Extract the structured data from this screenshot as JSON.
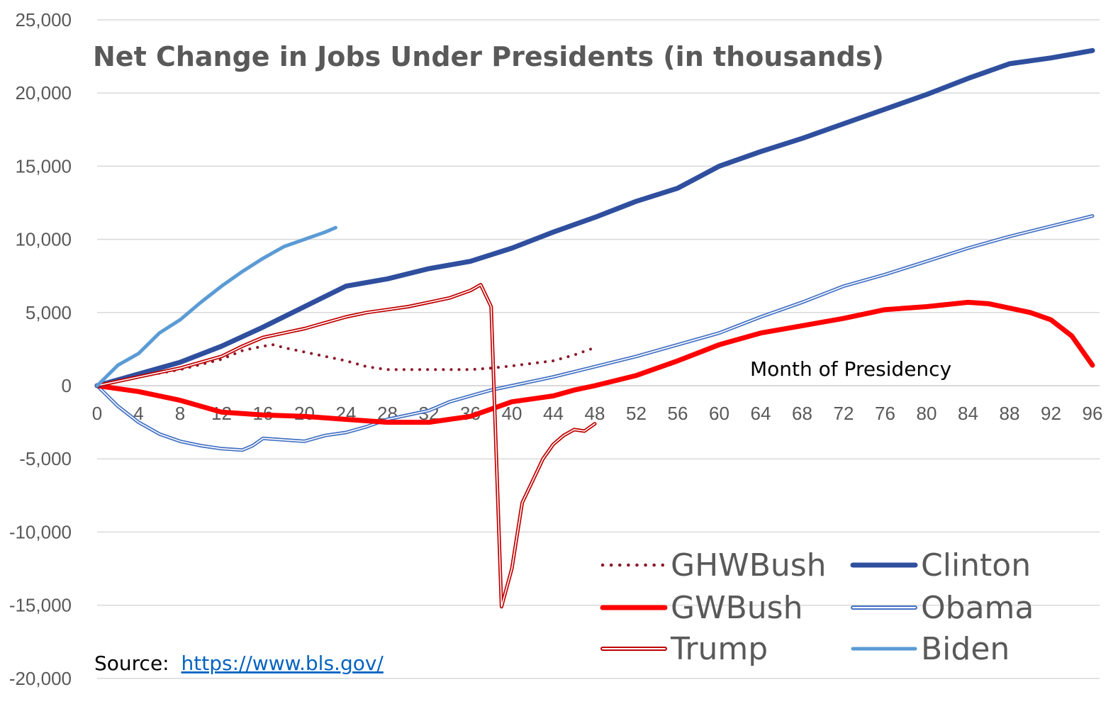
{
  "chart_data": {
    "type": "line",
    "title": "Net Change in Jobs Under Presidents (in thousands)",
    "xlabel": "Month of Presidency",
    "ylabel": "",
    "xlim": [
      0,
      96
    ],
    "ylim": [
      -20000,
      25000
    ],
    "xticks": [
      0,
      4,
      8,
      12,
      16,
      20,
      24,
      28,
      32,
      36,
      40,
      44,
      48,
      52,
      56,
      60,
      64,
      68,
      72,
      76,
      80,
      84,
      88,
      92,
      96
    ],
    "ytick_labels": [
      "25,000",
      "20,000",
      "15,000",
      "10,000",
      "5,000",
      "0",
      "-5,000",
      "-10,000",
      "-15,000",
      "-20,000"
    ],
    "ytick_values": [
      25000,
      20000,
      15000,
      10000,
      5000,
      0,
      -5000,
      -10000,
      -15000,
      -20000
    ],
    "grid": true,
    "series": [
      {
        "name": "GHWBush",
        "color": "#8b1a2b",
        "style": "dotted",
        "points": [
          [
            0,
            0
          ],
          [
            4,
            600
          ],
          [
            8,
            1100
          ],
          [
            12,
            1800
          ],
          [
            14,
            2400
          ],
          [
            16,
            2700
          ],
          [
            17,
            2800
          ],
          [
            18,
            2600
          ],
          [
            20,
            2300
          ],
          [
            22,
            2000
          ],
          [
            24,
            1700
          ],
          [
            26,
            1300
          ],
          [
            28,
            1100
          ],
          [
            32,
            1100
          ],
          [
            36,
            1100
          ],
          [
            38,
            1200
          ],
          [
            40,
            1350
          ],
          [
            44,
            1700
          ],
          [
            46,
            2100
          ],
          [
            48,
            2600
          ]
        ]
      },
      {
        "name": "Clinton",
        "color": "#2f4f9e",
        "style": "thick",
        "points": [
          [
            0,
            0
          ],
          [
            4,
            800
          ],
          [
            8,
            1600
          ],
          [
            12,
            2700
          ],
          [
            16,
            4000
          ],
          [
            20,
            5400
          ],
          [
            24,
            6800
          ],
          [
            28,
            7300
          ],
          [
            32,
            8000
          ],
          [
            36,
            8500
          ],
          [
            40,
            9400
          ],
          [
            44,
            10500
          ],
          [
            48,
            11500
          ],
          [
            52,
            12600
          ],
          [
            56,
            13500
          ],
          [
            60,
            15000
          ],
          [
            64,
            16000
          ],
          [
            68,
            16900
          ],
          [
            72,
            17900
          ],
          [
            76,
            18900
          ],
          [
            80,
            19900
          ],
          [
            84,
            21000
          ],
          [
            88,
            22000
          ],
          [
            92,
            22400
          ],
          [
            96,
            22900
          ]
        ]
      },
      {
        "name": "GWBush",
        "color": "#ff0000",
        "style": "thick",
        "points": [
          [
            0,
            0
          ],
          [
            4,
            -400
          ],
          [
            8,
            -1000
          ],
          [
            12,
            -1800
          ],
          [
            16,
            -2000
          ],
          [
            20,
            -2100
          ],
          [
            24,
            -2300
          ],
          [
            28,
            -2500
          ],
          [
            32,
            -2500
          ],
          [
            36,
            -2100
          ],
          [
            40,
            -1100
          ],
          [
            44,
            -700
          ],
          [
            46,
            -300
          ],
          [
            48,
            0
          ],
          [
            52,
            700
          ],
          [
            56,
            1700
          ],
          [
            60,
            2800
          ],
          [
            64,
            3600
          ],
          [
            68,
            4100
          ],
          [
            72,
            4600
          ],
          [
            76,
            5200
          ],
          [
            80,
            5400
          ],
          [
            84,
            5700
          ],
          [
            86,
            5600
          ],
          [
            88,
            5300
          ],
          [
            90,
            5000
          ],
          [
            92,
            4500
          ],
          [
            94,
            3400
          ],
          [
            96,
            1400
          ]
        ]
      },
      {
        "name": "Obama",
        "color": "#4472c4",
        "style": "double",
        "points": [
          [
            0,
            0
          ],
          [
            2,
            -1400
          ],
          [
            4,
            -2500
          ],
          [
            6,
            -3300
          ],
          [
            8,
            -3800
          ],
          [
            10,
            -4100
          ],
          [
            12,
            -4300
          ],
          [
            14,
            -4400
          ],
          [
            15,
            -4100
          ],
          [
            16,
            -3600
          ],
          [
            18,
            -3700
          ],
          [
            20,
            -3800
          ],
          [
            22,
            -3400
          ],
          [
            24,
            -3200
          ],
          [
            26,
            -2800
          ],
          [
            28,
            -2300
          ],
          [
            32,
            -1700
          ],
          [
            34,
            -1100
          ],
          [
            36,
            -700
          ],
          [
            38,
            -300
          ],
          [
            40,
            0
          ],
          [
            44,
            600
          ],
          [
            48,
            1300
          ],
          [
            52,
            2000
          ],
          [
            56,
            2800
          ],
          [
            60,
            3600
          ],
          [
            64,
            4700
          ],
          [
            68,
            5700
          ],
          [
            72,
            6800
          ],
          [
            76,
            7600
          ],
          [
            80,
            8500
          ],
          [
            84,
            9400
          ],
          [
            88,
            10200
          ],
          [
            92,
            10900
          ],
          [
            96,
            11600
          ]
        ]
      },
      {
        "name": "Trump",
        "color": "#c00000",
        "style": "double",
        "points": [
          [
            0,
            0
          ],
          [
            4,
            600
          ],
          [
            8,
            1200
          ],
          [
            12,
            2000
          ],
          [
            14,
            2700
          ],
          [
            16,
            3300
          ],
          [
            18,
            3600
          ],
          [
            20,
            3900
          ],
          [
            22,
            4300
          ],
          [
            24,
            4700
          ],
          [
            26,
            5000
          ],
          [
            28,
            5200
          ],
          [
            30,
            5400
          ],
          [
            32,
            5700
          ],
          [
            34,
            6000
          ],
          [
            36,
            6500
          ],
          [
            37,
            6900
          ],
          [
            38,
            5400
          ],
          [
            39,
            -15100
          ],
          [
            40,
            -12500
          ],
          [
            41,
            -8000
          ],
          [
            42,
            -6500
          ],
          [
            43,
            -5000
          ],
          [
            44,
            -4000
          ],
          [
            45,
            -3400
          ],
          [
            46,
            -3000
          ],
          [
            47,
            -3100
          ],
          [
            48,
            -2600
          ]
        ]
      },
      {
        "name": "Biden",
        "color": "#5b9bd5",
        "style": "medium",
        "points": [
          [
            0,
            0
          ],
          [
            2,
            1400
          ],
          [
            4,
            2200
          ],
          [
            6,
            3600
          ],
          [
            8,
            4500
          ],
          [
            10,
            5700
          ],
          [
            12,
            6800
          ],
          [
            14,
            7800
          ],
          [
            16,
            8700
          ],
          [
            18,
            9500
          ],
          [
            20,
            10000
          ],
          [
            22,
            10500
          ],
          [
            23,
            10800
          ]
        ]
      }
    ],
    "legend_position": "bottom-right",
    "legend": [
      "GHWBush",
      "Clinton",
      "GWBush",
      "Obama",
      "Trump",
      "Biden"
    ]
  },
  "source": {
    "label": "Source:",
    "link_text": "https://www.bls.gov/"
  }
}
